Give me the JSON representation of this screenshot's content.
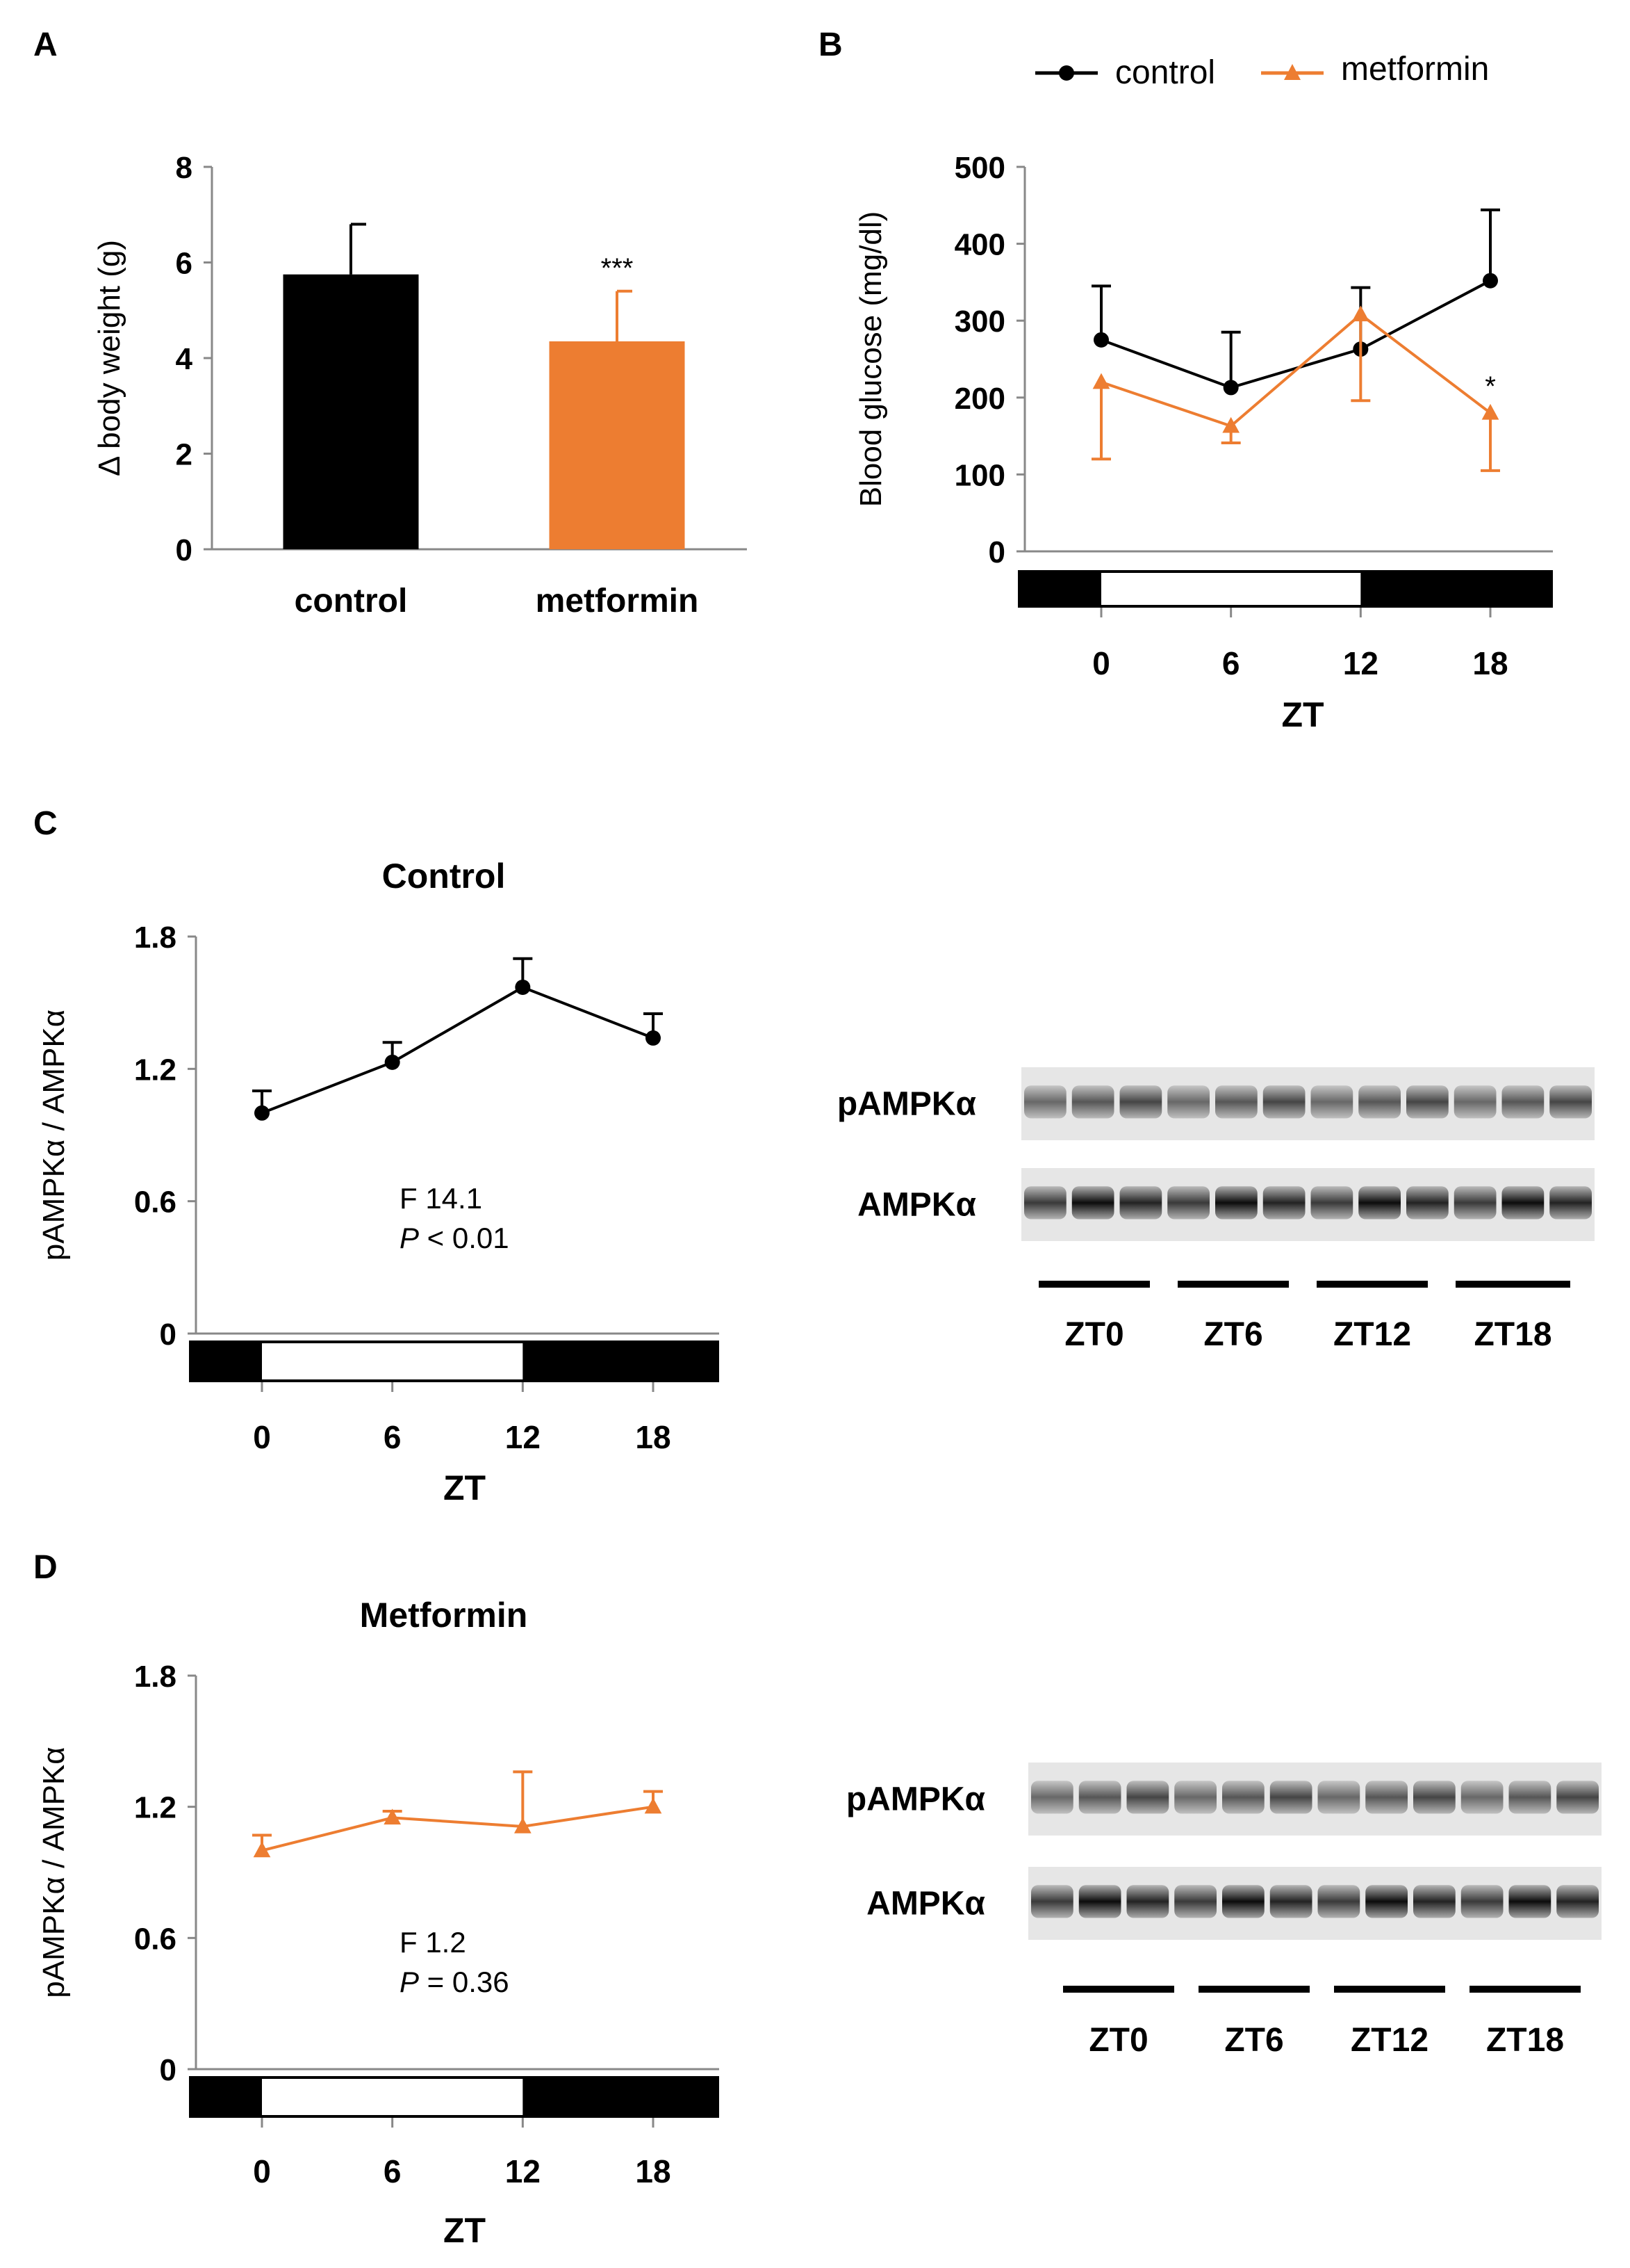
{
  "colors": {
    "control": "#000000",
    "metformin": "#ed7d31"
  },
  "panels": {
    "A": "A",
    "B": "B",
    "C": "C",
    "D": "D"
  },
  "legend": {
    "control": "control",
    "metformin": "metformin"
  },
  "chart_data": [
    {
      "id": "A",
      "type": "bar",
      "categories": [
        "control",
        "metformin"
      ],
      "values": [
        5.75,
        4.35
      ],
      "errors": [
        1.05,
        1.05
      ],
      "ylabel": "Δ body weight (g)",
      "ylim": [
        0,
        8
      ],
      "yticks": [
        0,
        2,
        4,
        6,
        8
      ],
      "annotations": {
        "metformin": "***"
      }
    },
    {
      "id": "B",
      "type": "line",
      "x": [
        0,
        6,
        12,
        18
      ],
      "xticks": [
        0,
        6,
        12,
        18
      ],
      "xlabel": "ZT",
      "ylabel": "Blood glucose (mg/dl)",
      "ylim": [
        0,
        500
      ],
      "yticks": [
        0,
        100,
        200,
        300,
        400,
        500
      ],
      "light_period": [
        0,
        12
      ],
      "series": [
        {
          "name": "control",
          "values": [
            275,
            213,
            263,
            352
          ],
          "err_up": [
            70,
            72,
            80,
            92
          ],
          "err_down": [
            0,
            0,
            0,
            0
          ],
          "marker": "circle"
        },
        {
          "name": "metformin",
          "values": [
            220,
            163,
            308,
            180
          ],
          "err_up": [
            0,
            0,
            0,
            0
          ],
          "err_down": [
            100,
            22,
            112,
            75
          ],
          "marker": "triangle"
        }
      ],
      "annotations": [
        {
          "x": 18,
          "text": "*"
        }
      ]
    },
    {
      "id": "C",
      "type": "line",
      "title": "Control",
      "x": [
        0,
        6,
        12,
        18
      ],
      "xticks": [
        0,
        6,
        12,
        18
      ],
      "xlabel": "ZT",
      "ylabel": "pAMPKα / AMPKα",
      "ylim": [
        0,
        1.8
      ],
      "yticks": [
        0,
        0.6,
        1.2,
        1.8
      ],
      "yticklabels": [
        "0",
        "0.6",
        "1.2",
        "1.8"
      ],
      "light_period": [
        0,
        12
      ],
      "series": [
        {
          "name": "control",
          "values": [
            1.0,
            1.23,
            1.57,
            1.34
          ],
          "err_up": [
            0.1,
            0.09,
            0.13,
            0.11
          ],
          "marker": "circle"
        }
      ],
      "stats": {
        "line1": "F 14.1",
        "p_label": "P",
        "p_value": " < 0.01"
      },
      "blot": {
        "rows": [
          "pAMPKα",
          "AMPKα"
        ],
        "lanes": [
          "ZT0",
          "ZT6",
          "ZT12",
          "ZT18"
        ]
      }
    },
    {
      "id": "D",
      "type": "line",
      "title": "Metformin",
      "x": [
        0,
        6,
        12,
        18
      ],
      "xticks": [
        0,
        6,
        12,
        18
      ],
      "xlabel": "ZT",
      "ylabel": "pAMPKα / AMPKα",
      "ylim": [
        0,
        1.8
      ],
      "yticks": [
        0,
        0.6,
        1.2,
        1.8
      ],
      "yticklabels": [
        "0",
        "0.6",
        "1.2",
        "1.8"
      ],
      "light_period": [
        0,
        12
      ],
      "series": [
        {
          "name": "metformin",
          "values": [
            1.0,
            1.15,
            1.11,
            1.2
          ],
          "err_up": [
            0.07,
            0.03,
            0.25,
            0.07
          ],
          "marker": "triangle"
        }
      ],
      "stats": {
        "line1": "F 1.2",
        "p_label": "P",
        "p_value": " = 0.36"
      },
      "blot": {
        "rows": [
          "pAMPKα",
          "AMPKα"
        ],
        "lanes": [
          "ZT0",
          "ZT6",
          "ZT12",
          "ZT18"
        ]
      }
    }
  ]
}
